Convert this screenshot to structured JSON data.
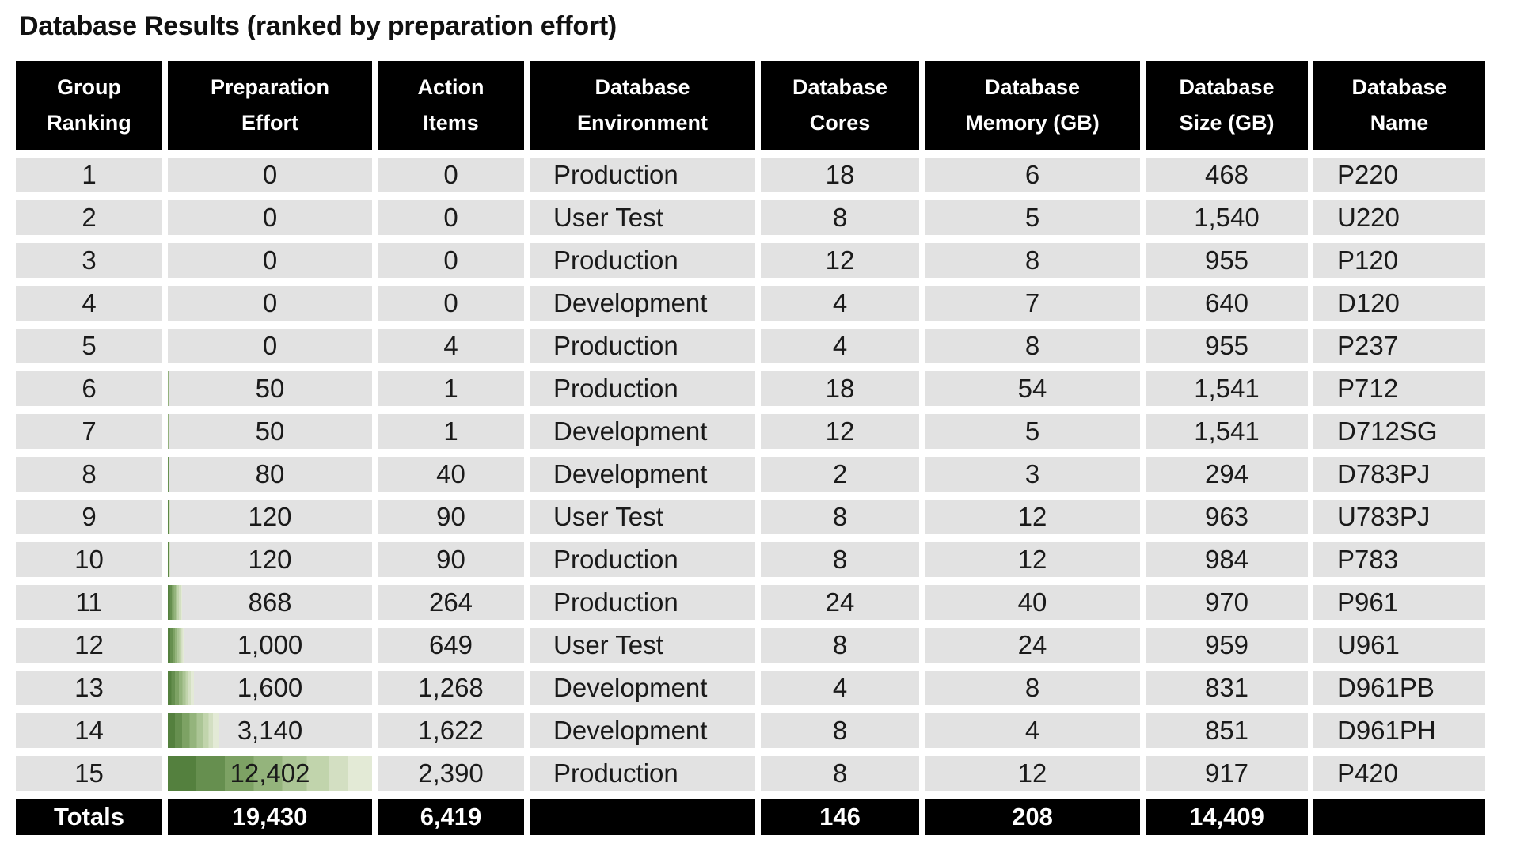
{
  "title": "Database Results (ranked by preparation effort)",
  "colors": {
    "header_bg": "#000000",
    "header_text": "#ffffff",
    "row_bg": "#e2e2e2",
    "bar_green_dark": "#54803e",
    "bar_green_light": "#e3ead6"
  },
  "table": {
    "columns": [
      {
        "line1": "Group",
        "line2": "Ranking"
      },
      {
        "line1": "Preparation",
        "line2": "Effort"
      },
      {
        "line1": "Action",
        "line2": "Items"
      },
      {
        "line1": "Database",
        "line2": "Environment"
      },
      {
        "line1": "Database",
        "line2": "Cores"
      },
      {
        "line1": "Database",
        "line2": "Memory (GB)"
      },
      {
        "line1": "Database",
        "line2": "Size (GB)"
      },
      {
        "line1": "Database",
        "line2": "Name"
      }
    ],
    "rows": [
      {
        "ranking": "1",
        "effort": "0",
        "effort_bar_pct": 0,
        "action_items": "0",
        "environment": "Production",
        "cores": "18",
        "memory": "6",
        "size": "468",
        "name": "P220"
      },
      {
        "ranking": "2",
        "effort": "0",
        "effort_bar_pct": 0,
        "action_items": "0",
        "environment": "User Test",
        "cores": "8",
        "memory": "5",
        "size": "1,540",
        "name": "U220"
      },
      {
        "ranking": "3",
        "effort": "0",
        "effort_bar_pct": 0,
        "action_items": "0",
        "environment": "Production",
        "cores": "12",
        "memory": "8",
        "size": "955",
        "name": "P120"
      },
      {
        "ranking": "4",
        "effort": "0",
        "effort_bar_pct": 0,
        "action_items": "0",
        "environment": "Development",
        "cores": "4",
        "memory": "7",
        "size": "640",
        "name": "D120"
      },
      {
        "ranking": "5",
        "effort": "0",
        "effort_bar_pct": 0,
        "action_items": "4",
        "environment": "Production",
        "cores": "4",
        "memory": "8",
        "size": "955",
        "name": "P237"
      },
      {
        "ranking": "6",
        "effort": "50",
        "effort_bar_pct": 0.4,
        "action_items": "1",
        "environment": "Production",
        "cores": "18",
        "memory": "54",
        "size": "1,541",
        "name": "P712"
      },
      {
        "ranking": "7",
        "effort": "50",
        "effort_bar_pct": 0.4,
        "action_items": "1",
        "environment": "Development",
        "cores": "12",
        "memory": "5",
        "size": "1,541",
        "name": "D712SG"
      },
      {
        "ranking": "8",
        "effort": "80",
        "effort_bar_pct": 0.65,
        "action_items": "40",
        "environment": "Development",
        "cores": "2",
        "memory": "3",
        "size": "294",
        "name": "D783PJ"
      },
      {
        "ranking": "9",
        "effort": "120",
        "effort_bar_pct": 0.97,
        "action_items": "90",
        "environment": "User Test",
        "cores": "8",
        "memory": "12",
        "size": "963",
        "name": "U783PJ"
      },
      {
        "ranking": "10",
        "effort": "120",
        "effort_bar_pct": 0.97,
        "action_items": "90",
        "environment": "Production",
        "cores": "8",
        "memory": "12",
        "size": "984",
        "name": "P783"
      },
      {
        "ranking": "11",
        "effort": "868",
        "effort_bar_pct": 7.0,
        "action_items": "264",
        "environment": "Production",
        "cores": "24",
        "memory": "40",
        "size": "970",
        "name": "P961"
      },
      {
        "ranking": "12",
        "effort": "1,000",
        "effort_bar_pct": 8.06,
        "action_items": "649",
        "environment": "User Test",
        "cores": "8",
        "memory": "24",
        "size": "959",
        "name": "U961"
      },
      {
        "ranking": "13",
        "effort": "1,600",
        "effort_bar_pct": 12.9,
        "action_items": "1,268",
        "environment": "Development",
        "cores": "4",
        "memory": "8",
        "size": "831",
        "name": "D961PB"
      },
      {
        "ranking": "14",
        "effort": "3,140",
        "effort_bar_pct": 25.3,
        "action_items": "1,622",
        "environment": "Development",
        "cores": "8",
        "memory": "4",
        "size": "851",
        "name": "D961PH"
      },
      {
        "ranking": "15",
        "effort": "12,402",
        "effort_bar_pct": 100,
        "action_items": "2,390",
        "environment": "Production",
        "cores": "8",
        "memory": "12",
        "size": "917",
        "name": "P420"
      }
    ],
    "totals": {
      "label": "Totals",
      "effort": "19,430",
      "action_items": "6,419",
      "environment": "",
      "cores": "146",
      "memory": "208",
      "size": "14,409",
      "name": ""
    }
  }
}
